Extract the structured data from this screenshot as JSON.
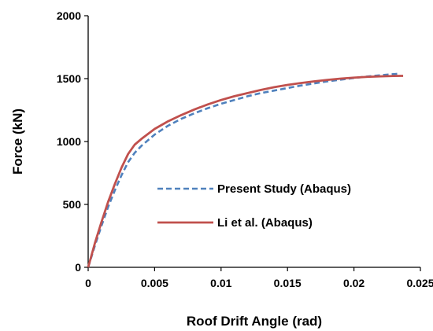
{
  "chart_data": {
    "type": "line",
    "xlabel": "Roof Drift Angle (rad)",
    "ylabel": "Force (kN)",
    "xlim": [
      0,
      0.025
    ],
    "ylim": [
      0,
      2000
    ],
    "xticks": [
      "0",
      "0.005",
      "0.01",
      "0.015",
      "0.02",
      "0.025"
    ],
    "yticks": [
      "0",
      "500",
      "1000",
      "1500",
      "2000"
    ],
    "grid": false,
    "legend_position": "center-right",
    "series": [
      {
        "name": "Present Study (Abaqus)",
        "color": "#4f81bd",
        "style": "dashed",
        "x": [
          0,
          0.0005,
          0.001,
          0.0015,
          0.002,
          0.0025,
          0.003,
          0.0035,
          0.004,
          0.005,
          0.006,
          0.007,
          0.008,
          0.009,
          0.01,
          0.011,
          0.012,
          0.013,
          0.014,
          0.015,
          0.016,
          0.017,
          0.018,
          0.019,
          0.02,
          0.021,
          0.022,
          0.023,
          0.0233
        ],
        "y": [
          0,
          170,
          330,
          480,
          610,
          730,
          835,
          910,
          965,
          1055,
          1125,
          1180,
          1225,
          1265,
          1300,
          1330,
          1360,
          1385,
          1405,
          1425,
          1445,
          1462,
          1478,
          1492,
          1505,
          1517,
          1527,
          1536,
          1538
        ]
      },
      {
        "name": "Li et al. (Abaqus)",
        "color": "#c0504d",
        "style": "solid",
        "x": [
          0,
          0.0005,
          0.001,
          0.0015,
          0.002,
          0.0025,
          0.003,
          0.0035,
          0.004,
          0.005,
          0.006,
          0.007,
          0.008,
          0.009,
          0.01,
          0.011,
          0.012,
          0.013,
          0.014,
          0.015,
          0.016,
          0.017,
          0.018,
          0.019,
          0.02,
          0.021,
          0.022,
          0.023,
          0.0237
        ],
        "y": [
          0,
          190,
          360,
          520,
          660,
          790,
          900,
          975,
          1020,
          1100,
          1160,
          1210,
          1255,
          1295,
          1330,
          1360,
          1385,
          1410,
          1432,
          1450,
          1465,
          1478,
          1490,
          1500,
          1508,
          1514,
          1518,
          1521,
          1522
        ]
      }
    ]
  }
}
